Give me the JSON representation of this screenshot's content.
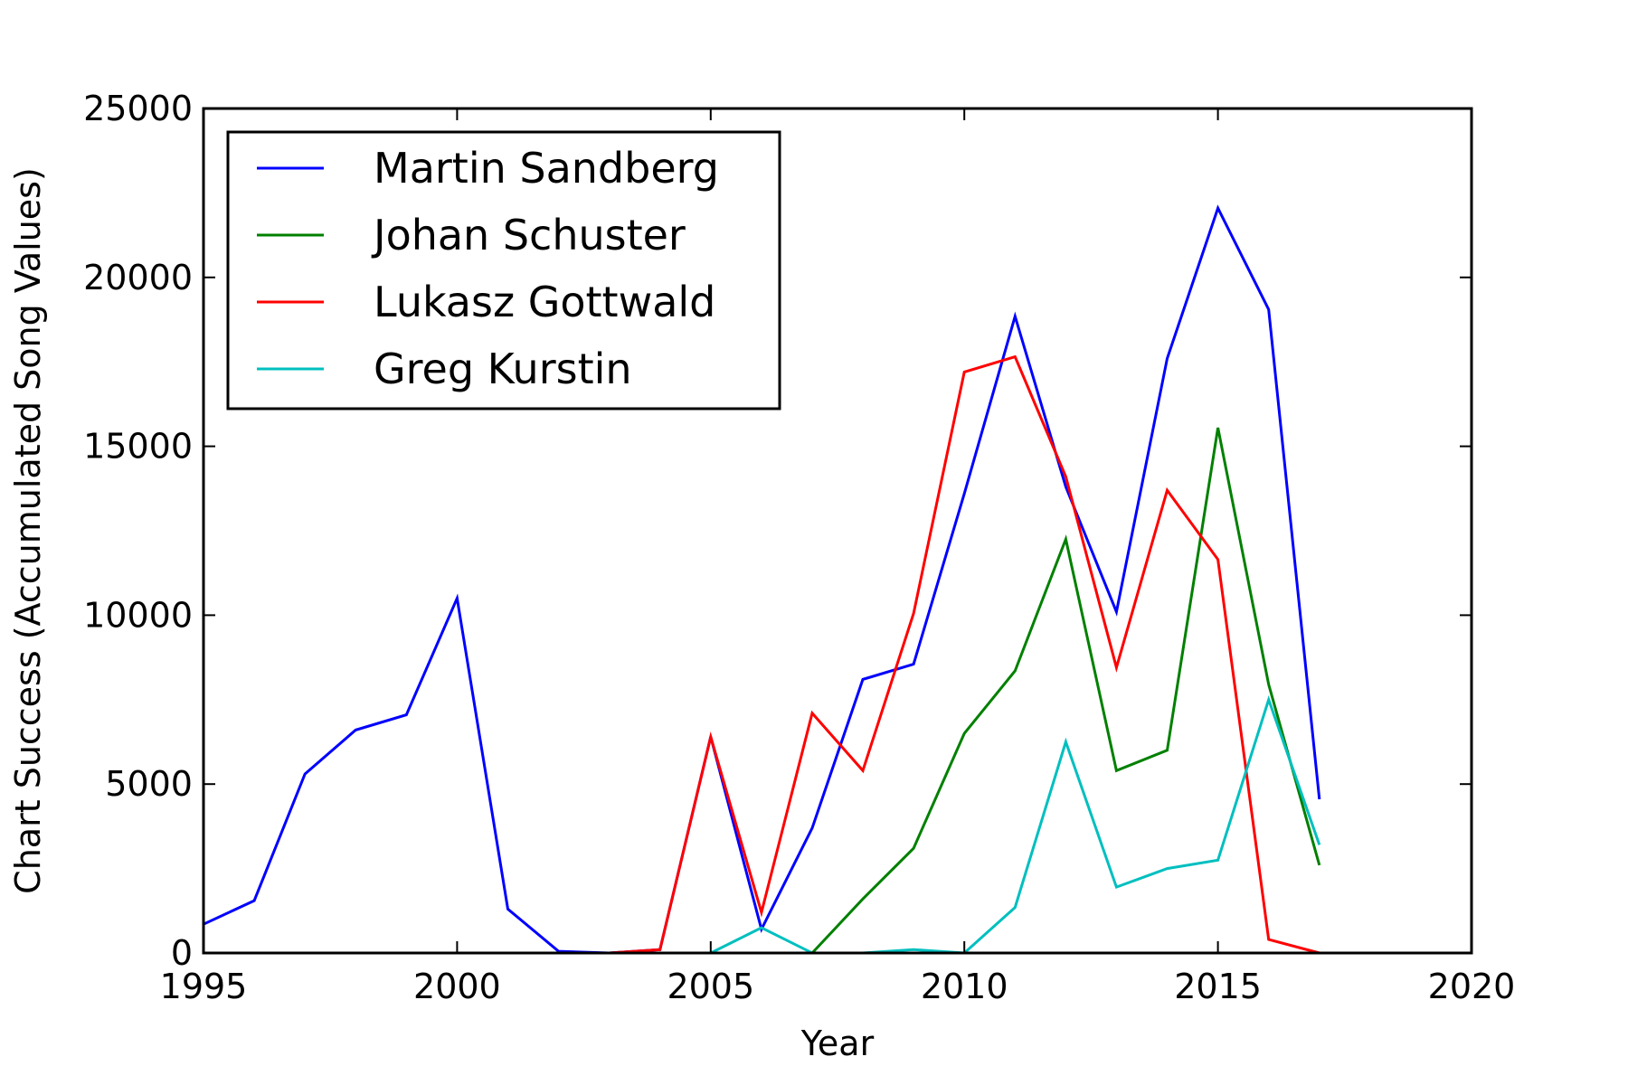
{
  "chart_data": {
    "type": "line",
    "title": "",
    "xlabel": "Year",
    "ylabel": "Chart Success (Accumulated Song Values)",
    "xlim": [
      1995,
      2020
    ],
    "ylim": [
      0,
      25000
    ],
    "xticks": [
      1995,
      2000,
      2005,
      2010,
      2015,
      2020
    ],
    "yticks": [
      0,
      5000,
      10000,
      15000,
      20000,
      25000
    ],
    "grid": false,
    "legend": "top-left",
    "x": [
      1995,
      1996,
      1997,
      1998,
      1999,
      2000,
      2001,
      2002,
      2003,
      2004,
      2005,
      2006,
      2007,
      2008,
      2009,
      2010,
      2011,
      2012,
      2013,
      2014,
      2015,
      2016,
      2017
    ],
    "series": [
      {
        "name": "Martin Sandberg",
        "color": "#0000ff",
        "values": [
          850,
          1550,
          5300,
          6600,
          7050,
          10500,
          1300,
          50,
          0,
          100,
          6400,
          700,
          3700,
          8100,
          8550,
          13600,
          18850,
          13800,
          10100,
          17600,
          22050,
          19050,
          4550
        ]
      },
      {
        "name": "Johan Schuster",
        "color": "#008000",
        "values": [
          null,
          null,
          null,
          null,
          null,
          null,
          null,
          null,
          null,
          null,
          null,
          null,
          0,
          1600,
          3100,
          6500,
          8350,
          12250,
          5400,
          6000,
          15550,
          7950,
          2600
        ]
      },
      {
        "name": "Lukasz Gottwald",
        "color": "#ff0000",
        "values": [
          null,
          null,
          null,
          null,
          null,
          null,
          null,
          null,
          0,
          100,
          6400,
          1200,
          7100,
          5400,
          10050,
          17200,
          17650,
          14100,
          8450,
          13700,
          11650,
          400,
          0
        ]
      },
      {
        "name": "Greg Kurstin",
        "color": "#00bfbf",
        "values": [
          null,
          null,
          null,
          null,
          null,
          null,
          null,
          null,
          null,
          null,
          0,
          750,
          0,
          0,
          100,
          0,
          1350,
          6250,
          1950,
          2500,
          2750,
          7500,
          3200
        ]
      }
    ]
  }
}
